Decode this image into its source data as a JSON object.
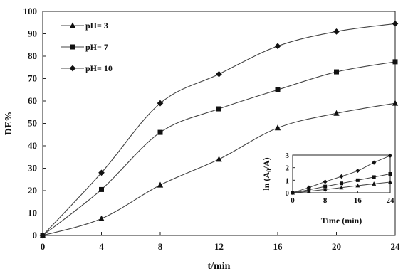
{
  "chart_data": [
    {
      "type": "line",
      "title": "",
      "xlabel": "t/min",
      "ylabel": "DE%",
      "xlim": [
        0,
        24
      ],
      "ylim": [
        0,
        100
      ],
      "xticks": [
        0,
        4,
        8,
        12,
        16,
        20,
        24
      ],
      "yticks": [
        0,
        10,
        20,
        30,
        40,
        50,
        60,
        70,
        80,
        90,
        100
      ],
      "grid": false,
      "legend_position": "top-left",
      "x": [
        0,
        4,
        8,
        12,
        16,
        20,
        24
      ],
      "series": [
        {
          "name": "pH= 3",
          "marker": "triangle",
          "values": [
            0,
            7.5,
            22.5,
            34,
            48,
            54.5,
            59
          ]
        },
        {
          "name": "pH= 7",
          "marker": "square",
          "values": [
            0,
            20.5,
            46,
            56.5,
            65,
            73,
            77.5
          ]
        },
        {
          "name": "pH= 10",
          "marker": "diamond",
          "values": [
            0,
            28,
            59,
            72,
            84.5,
            91,
            94.5
          ]
        }
      ]
    },
    {
      "type": "line",
      "title": "",
      "xlabel": "Time (min)",
      "ylabel": "ln (A0/A)",
      "ylabel_main": "ln (A",
      "ylabel_sub": "0",
      "ylabel_end": "/A)",
      "xlim": [
        0,
        24
      ],
      "ylim": [
        0,
        3
      ],
      "xticks": [
        0,
        8,
        16,
        24
      ],
      "yticks": [
        0,
        1,
        2,
        3
      ],
      "grid": false,
      "x": [
        0,
        4,
        8,
        12,
        16,
        20,
        24
      ],
      "series": [
        {
          "name": "pH= 3",
          "marker": "triangle",
          "values": [
            0,
            0.12,
            0.26,
            0.41,
            0.57,
            0.71,
            0.85
          ]
        },
        {
          "name": "pH= 7",
          "marker": "square",
          "values": [
            0,
            0.24,
            0.5,
            0.75,
            1.0,
            1.25,
            1.5
          ]
        },
        {
          "name": "pH= 10",
          "marker": "diamond",
          "values": [
            0,
            0.42,
            0.88,
            1.3,
            1.75,
            2.4,
            2.95
          ]
        }
      ]
    }
  ]
}
